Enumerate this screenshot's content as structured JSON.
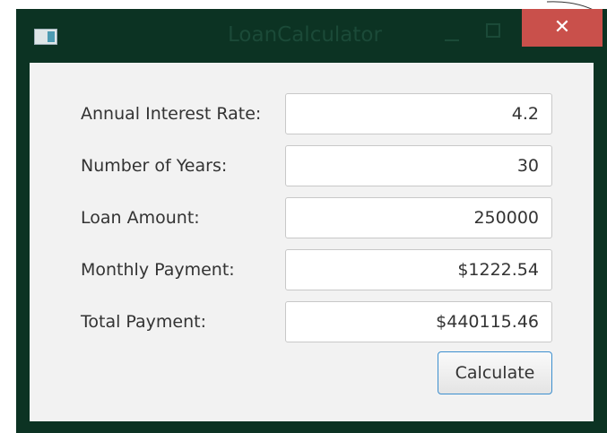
{
  "window": {
    "title": "LoanCalculator"
  },
  "form": {
    "rows": [
      {
        "label": "Annual Interest Rate:",
        "value": "4.2"
      },
      {
        "label": "Number of Years:",
        "value": "30"
      },
      {
        "label": "Loan Amount:",
        "value": "250000"
      },
      {
        "label": "Monthly Payment:",
        "value": "$1222.54"
      },
      {
        "label": "Total Payment:",
        "value": "$440115.46"
      }
    ]
  },
  "button": {
    "label": "Calculate"
  }
}
